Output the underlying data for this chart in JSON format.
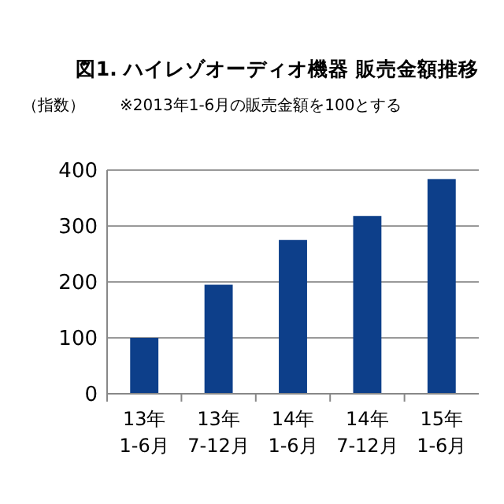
{
  "chart_data": {
    "type": "bar",
    "title": "図1. ハイレゾオーディオ機器 販売金額推移",
    "subtitle": "※2013年1-6月の販売金額を100とする",
    "ylabel": "（指数）",
    "categories": [
      "13年\n1-6月",
      "13年\n7-12月",
      "14年\n1-6月",
      "14年\n7-12月",
      "15年\n1-6月"
    ],
    "values": [
      100,
      195,
      275,
      318,
      384
    ],
    "color": "#0d3f8a",
    "ylim": [
      0,
      400
    ],
    "yticks": [
      0,
      100,
      200,
      300,
      400
    ],
    "grid": "y"
  }
}
